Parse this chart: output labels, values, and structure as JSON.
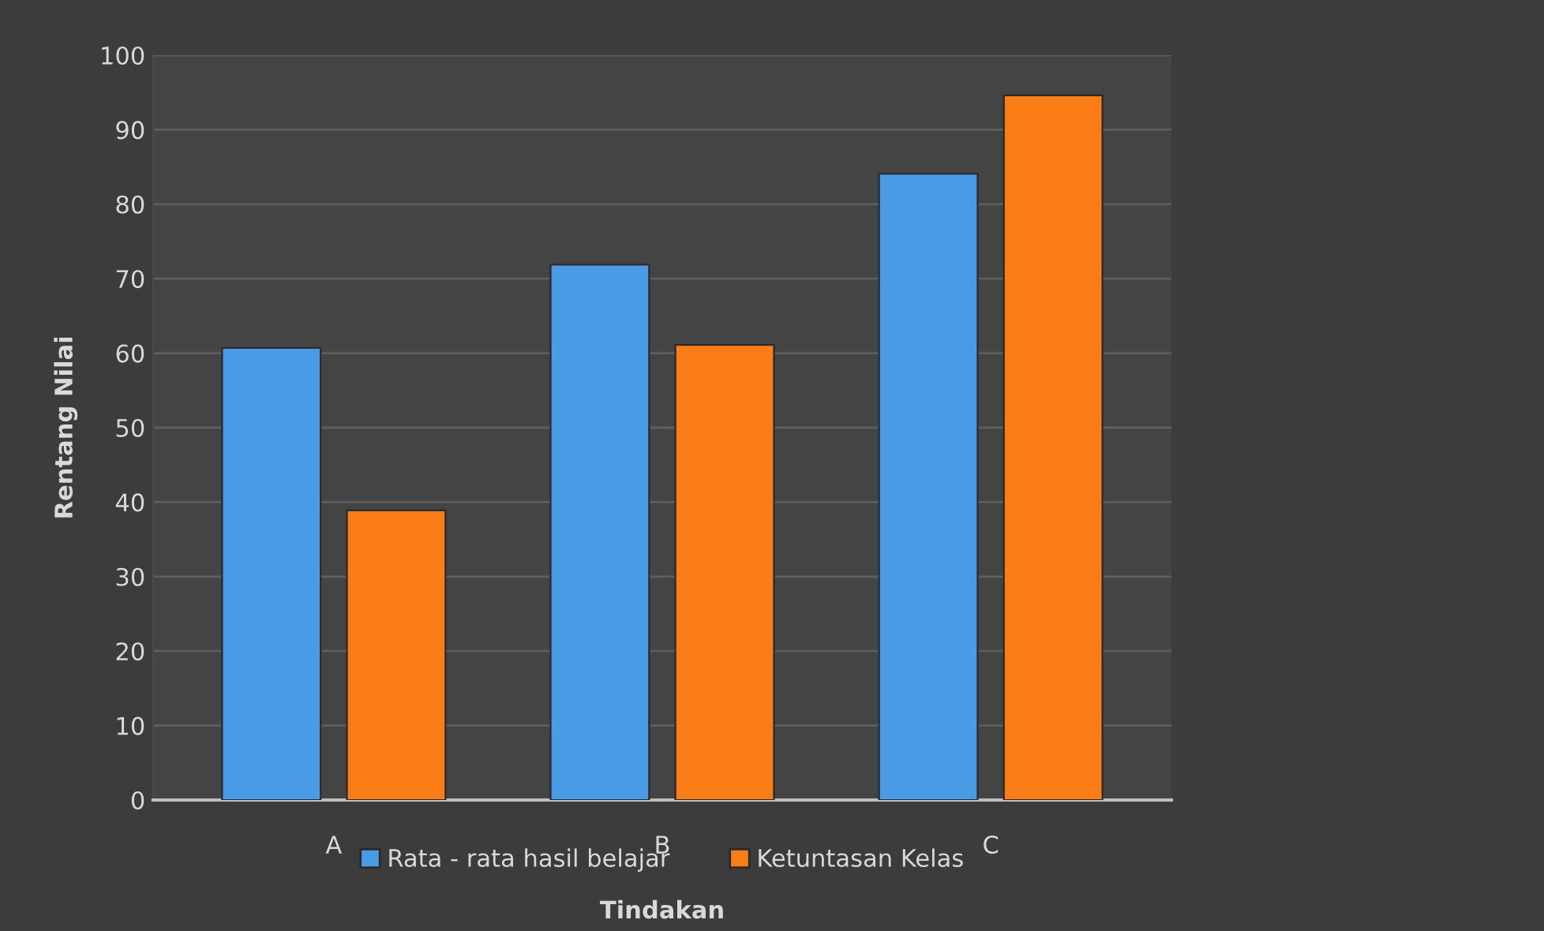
{
  "chart_data": {
    "type": "bar",
    "xlabel": "Tindakan",
    "ylabel": "Rentang Nilai",
    "categories": [
      "A",
      "B",
      "C"
    ],
    "series": [
      {
        "name": "Rata - rata hasil belajar",
        "color": "#4a9be6",
        "values": [
          60.7,
          71.9,
          84.1
        ]
      },
      {
        "name": "Ketuntasan Kelas",
        "color": "#fa7d17",
        "values": [
          38.9,
          61.1,
          94.6
        ]
      }
    ],
    "ylim": [
      0,
      100
    ],
    "yticks": [
      0,
      10,
      20,
      30,
      40,
      50,
      60,
      70,
      80,
      90,
      100
    ],
    "grid": "y",
    "legend": "bottom"
  }
}
